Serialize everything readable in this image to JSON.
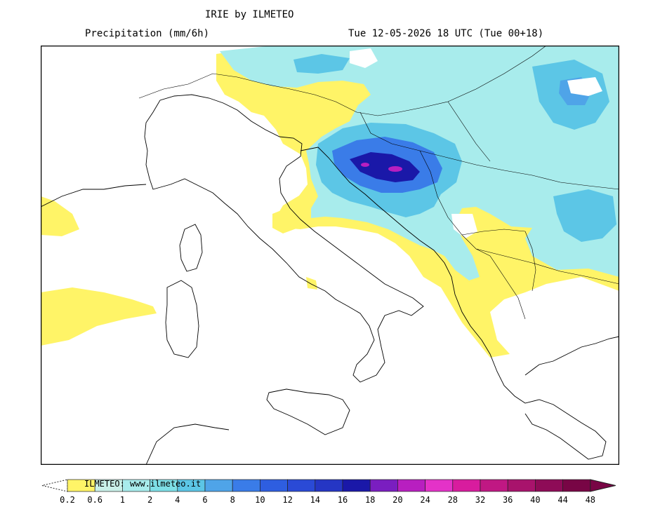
{
  "header": {
    "model_title": "IRIE by ILMETEO",
    "variable": "Precipitation (mm/6h)",
    "valid_time": "Tue 12-05-2026 18 UTC (Tue 00+18)"
  },
  "legend": {
    "watermark": "ILMETEO: www.ilmeteo.it",
    "thresholds": [
      "0.2",
      "0.6",
      "1",
      "2",
      "4",
      "6",
      "8",
      "10",
      "12",
      "14",
      "16",
      "18",
      "20",
      "24",
      "28",
      "32",
      "36",
      "40",
      "44",
      "48"
    ],
    "colors": [
      "#fff467",
      "#c9f0e8",
      "#a8ecec",
      "#7edfe6",
      "#5cc6e6",
      "#4fa4e8",
      "#3a7ce8",
      "#2e5ee0",
      "#2a4ad6",
      "#2536c4",
      "#1a18a8",
      "#7a1ec0",
      "#b81fc0",
      "#e432c8",
      "#d81c9e",
      "#c01883",
      "#a8136c",
      "#8e0b57",
      "#780545"
    ],
    "bg_color": "#ffffff",
    "border_color": "#222222"
  }
}
